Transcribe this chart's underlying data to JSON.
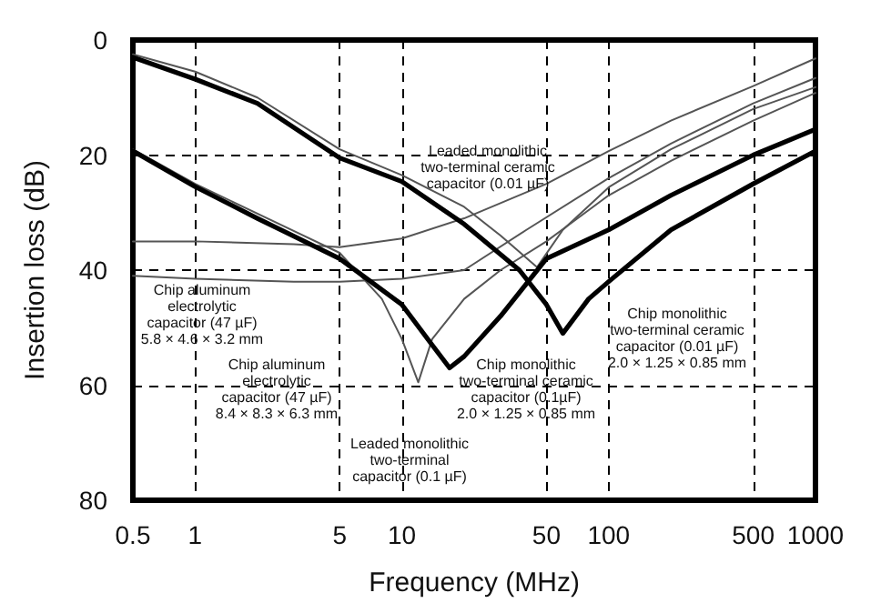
{
  "chart_data": {
    "type": "line",
    "xlabel": "Frequency (MHz)",
    "ylabel": "Insertion loss (dB)",
    "log": "x",
    "xlim": [
      0.5,
      1000
    ],
    "xticks": [
      0.5,
      1,
      5,
      10,
      50,
      100,
      500,
      1000
    ],
    "ylim": [
      80,
      0
    ],
    "yticks": [
      0,
      20,
      40,
      60,
      80
    ],
    "grid": true,
    "marker": "none",
    "line_style": "solid",
    "series": [
      {
        "color": "#555555",
        "x": [
          0.5,
          1,
          3,
          5,
          10,
          20,
          50,
          100,
          200,
          500,
          1000
        ],
        "values": [
          35,
          35,
          35.5,
          36,
          34.5,
          31,
          25,
          19.3,
          14,
          8,
          3.2
        ]
      },
      {
        "color": "#555555",
        "x": [
          0.5,
          1,
          3,
          5,
          10,
          20,
          40,
          100,
          200,
          500,
          1000
        ],
        "values": [
          41,
          41.5,
          42,
          42,
          41.5,
          40,
          33,
          24,
          18,
          11,
          6.6
        ]
      },
      {
        "color": "#555555",
        "x": [
          0.5,
          1,
          2,
          5,
          10,
          20,
          30,
          45,
          60,
          100,
          200,
          500,
          1000
        ],
        "values": [
          2.5,
          5.5,
          10,
          19,
          23.5,
          29,
          34,
          39.5,
          33,
          25.6,
          19,
          12,
          8.2
        ]
      },
      {
        "color": "#555555",
        "x": [
          0.5,
          1,
          5,
          8,
          10,
          12,
          14,
          20,
          30,
          50,
          100,
          200,
          500,
          1000
        ],
        "values": [
          19,
          25,
          37,
          45,
          52,
          59.5,
          52,
          45,
          40,
          35,
          27,
          21,
          14,
          9.2
        ]
      },
      {
        "color": "#000000",
        "x": [
          0.5,
          1,
          2,
          5,
          10,
          20,
          37,
          50,
          60,
          80,
          100,
          200,
          500,
          1000
        ],
        "values": [
          3,
          6.8,
          11,
          20.5,
          24.6,
          32,
          40,
          46,
          51,
          45,
          42,
          33,
          25,
          19.3
        ]
      },
      {
        "color": "#000000",
        "x": [
          0.5,
          1,
          2,
          5,
          10,
          14,
          17,
          20,
          30,
          50,
          100,
          200,
          500,
          1000
        ],
        "values": [
          19.3,
          25.5,
          31,
          38,
          46,
          53,
          57,
          55,
          48,
          38,
          33,
          27,
          20,
          15.5
        ]
      }
    ],
    "annotations": [
      "Leaded monolithic\ntwo-terminal ceramic\ncapacitor (0.01 µF)",
      "Chip aluminum\nelectrolytic\ncapacitor (47 µF)\n5.8 × 4.6 × 3.2 mm",
      "Chip aluminum\nelectrolytic\ncapacitor (47 µF)\n8.4 × 8.3 × 6.3 mm",
      "Leaded monolithic\ntwo-terminal\ncapacitor (0.1 µF)",
      "Chip monolithic\ntwo-terminal ceramic\ncapacitor (0.1µF)\n2.0 × 1.25 × 0.85 mm",
      "Chip monolithic\ntwo-terminal ceramic\ncapacitor (0.01 µF)\n2.0 × 1.25 × 0.85 mm"
    ]
  }
}
